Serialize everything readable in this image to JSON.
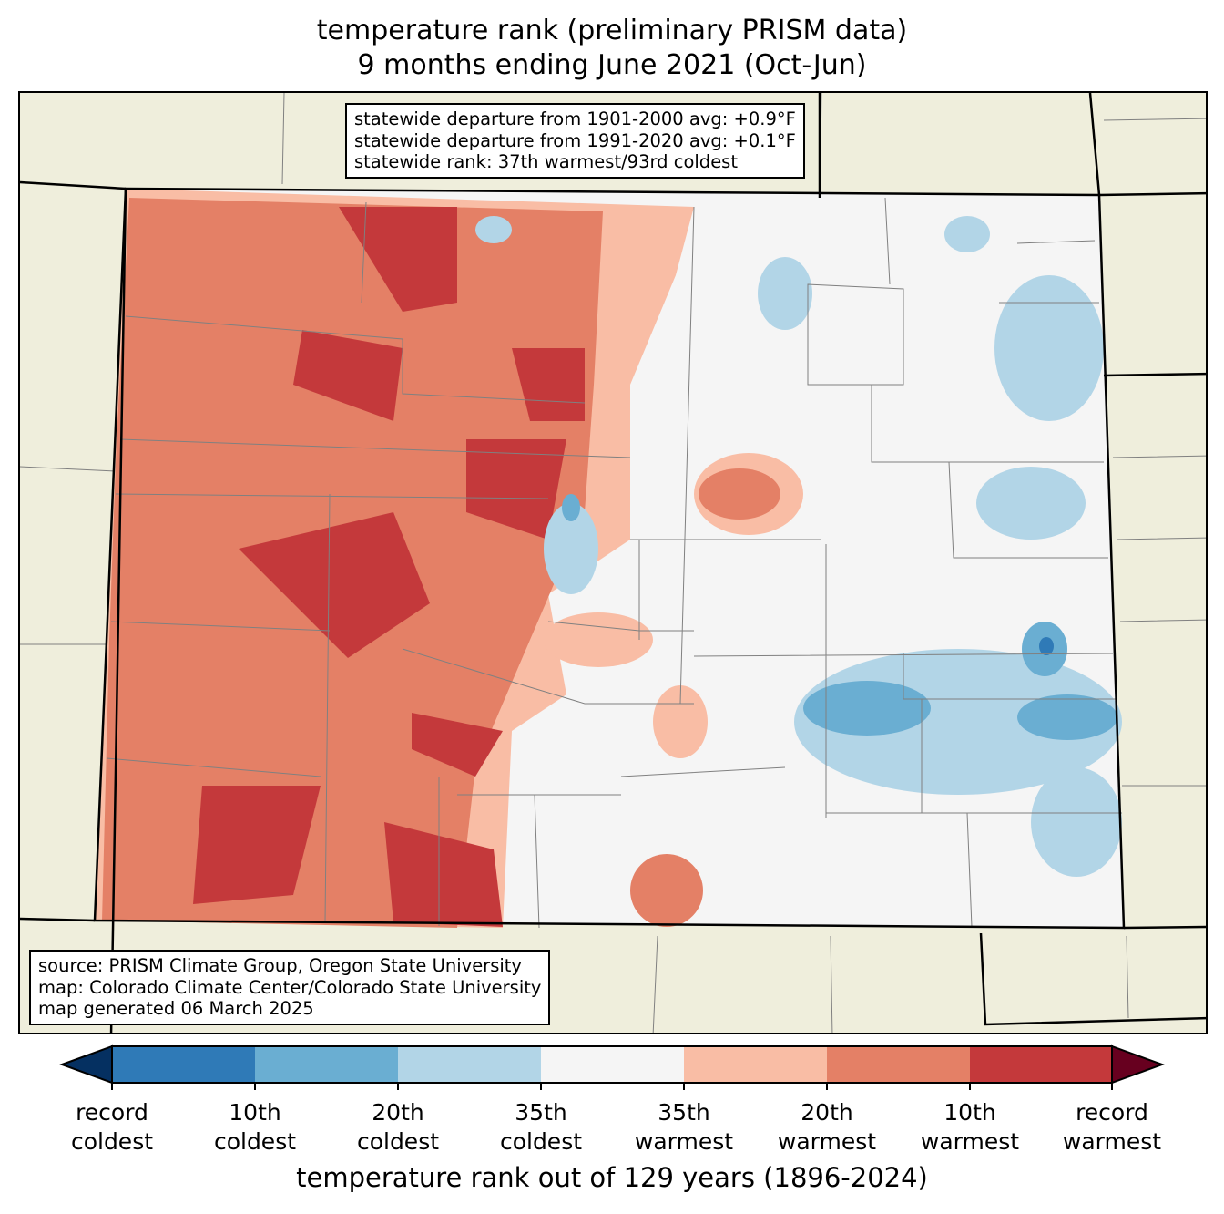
{
  "title": {
    "line1": "temperature rank (preliminary PRISM data)",
    "line2": "9 months ending June 2021 (Oct-Jun)"
  },
  "stats_box": {
    "lines": [
      "statewide departure from 1901-2000 avg: +0.9°F",
      "statewide departure from 1991-2020 avg: +0.1°F",
      "statewide rank: 37th warmest/93rd coldest"
    ]
  },
  "source_box": {
    "lines": [
      "source: PRISM Climate Group, Oregon State University",
      "map: Colorado Climate Center/Colorado State University",
      "map generated 06 March 2025"
    ]
  },
  "colorbar": {
    "colors": {
      "record_coldest": "#053061",
      "c10": "#2f7ab7",
      "c20": "#6aaed2",
      "c35": "#b2d5e7",
      "neutral": "#f5f5f5",
      "w35": "#f9bda5",
      "w20": "#e48066",
      "w10": "#c4393b",
      "record_warmest": "#67001f"
    },
    "tick_labels": [
      [
        "record",
        "coldest"
      ],
      [
        "10th",
        "coldest"
      ],
      [
        "20th",
        "coldest"
      ],
      [
        "35th",
        "coldest"
      ],
      [
        "35th",
        "warmest"
      ],
      [
        "20th",
        "warmest"
      ],
      [
        "10th",
        "warmest"
      ],
      [
        "record",
        "warmest"
      ]
    ],
    "label": "temperature rank out of 129 years (1896-2024)"
  },
  "map_colors": {
    "land": "#efeedc",
    "border": "#000000",
    "county": "#808080"
  }
}
